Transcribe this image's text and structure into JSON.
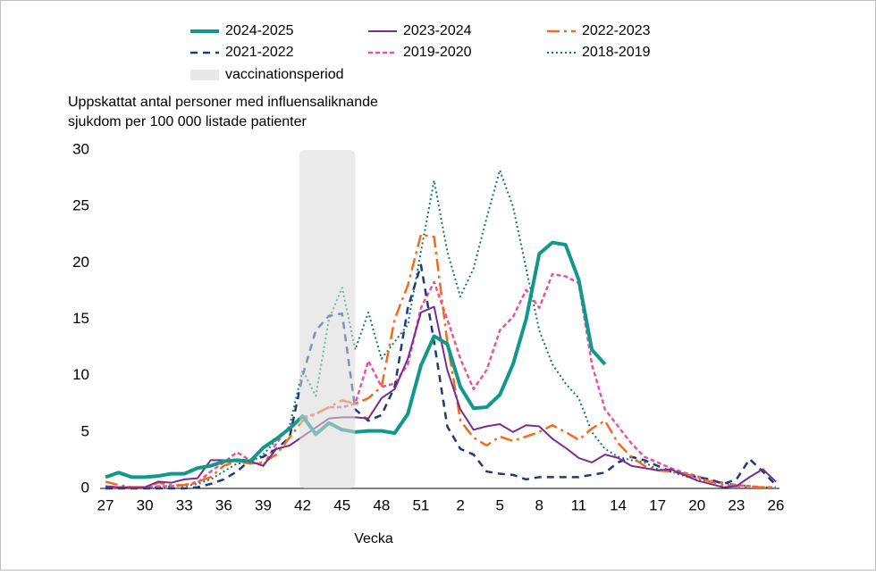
{
  "chart_data": {
    "type": "line",
    "ylabel": [
      "Uppskattat antal personer med influensaliknande",
      "sjukdom per 100 000 listade patienter"
    ],
    "xlabel": "Vecka",
    "categories": [
      27,
      null,
      null,
      30,
      null,
      null,
      33,
      null,
      null,
      36,
      null,
      null,
      39,
      null,
      null,
      42,
      null,
      null,
      45,
      null,
      null,
      48,
      null,
      null,
      51,
      null,
      null,
      2,
      null,
      null,
      5,
      null,
      null,
      8,
      null,
      null,
      11,
      null,
      null,
      14,
      null,
      null,
      17,
      null,
      null,
      20,
      null,
      null,
      23,
      null,
      null,
      26
    ],
    "ylim": [
      0,
      30
    ],
    "yticks": [
      0,
      5,
      10,
      15,
      20,
      25,
      30
    ],
    "shaded_span": {
      "name": "vaccinationsperiod",
      "from": 42,
      "to": 45,
      "color": "#d9d9d9"
    },
    "series": [
      {
        "name": "2024-2025",
        "color": "#10998a",
        "style": "solid",
        "width": 4,
        "values": [
          1.0,
          1.4,
          1.0,
          1.0,
          1.1,
          1.3,
          1.3,
          1.8,
          2.0,
          2.4,
          2.5,
          2.4,
          3.6,
          4.4,
          5.3,
          6.4,
          4.8,
          5.8,
          5.2,
          5.0,
          5.1,
          5.1,
          4.9,
          6.6,
          10.9,
          13.5,
          12.8,
          9.0,
          7.1,
          7.2,
          8.3,
          11.0,
          15.0,
          20.8,
          21.8,
          21.6,
          18.5,
          12.3,
          11.0,
          null,
          null,
          null,
          null,
          null,
          null,
          null,
          null,
          null,
          null,
          null,
          null,
          null
        ]
      },
      {
        "name": "2023-2024",
        "color": "#7b2d8e",
        "style": "solid",
        "width": 2,
        "values": [
          0.2,
          0.1,
          0.1,
          0.1,
          0.6,
          0.5,
          0.8,
          0.9,
          2.5,
          2.5,
          2.4,
          2.4,
          2.0,
          3.5,
          3.8,
          4.6,
          5.4,
          6.2,
          6.3,
          6.3,
          6.2,
          8.0,
          8.8,
          11.5,
          15.6,
          16.1,
          10.5,
          7.0,
          5.2,
          5.5,
          5.7,
          5.0,
          5.6,
          5.5,
          4.4,
          3.6,
          2.7,
          2.3,
          3.0,
          2.7,
          2.0,
          1.8,
          1.6,
          1.7,
          1.2,
          0.7,
          0.4,
          0.1,
          0.2,
          1.0,
          1.7,
          0.6
        ]
      },
      {
        "name": "2022-2023",
        "color": "#f26b1d",
        "style": "dashdot",
        "width": 2.5,
        "values": [
          0.6,
          0.3,
          0.1,
          0.1,
          0.5,
          0.3,
          0.3,
          0.6,
          1.0,
          2.0,
          2.4,
          2.2,
          2.3,
          3.0,
          4.5,
          6.0,
          6.6,
          7.2,
          7.8,
          7.5,
          8.0,
          9.0,
          15.0,
          18.0,
          22.5,
          22.3,
          13.0,
          6.0,
          4.5,
          3.8,
          4.6,
          4.2,
          4.6,
          5.0,
          5.6,
          5.0,
          4.3,
          5.3,
          6.0,
          4.0,
          2.8,
          2.0,
          1.6,
          1.5,
          1.3,
          1.0,
          0.6,
          0.3,
          0.2,
          0.1,
          0.1,
          0.1
        ]
      },
      {
        "name": "2021-2022",
        "color": "#1f3a7a",
        "style": "dashed",
        "width": 2.5,
        "values": [
          0,
          0,
          0,
          0,
          0,
          0,
          0,
          0.1,
          0.4,
          0.8,
          1.5,
          2.5,
          2.8,
          3.5,
          4.5,
          10.0,
          14.0,
          15.3,
          15.5,
          7.0,
          6.0,
          6.5,
          9.0,
          16.0,
          19.8,
          13.0,
          5.5,
          3.5,
          3.0,
          1.5,
          1.3,
          1.2,
          0.8,
          1.0,
          1.0,
          1.0,
          1.0,
          1.2,
          1.4,
          2.3,
          2.8,
          2.5,
          2.0,
          1.5,
          1.3,
          1.0,
          0.8,
          0.4,
          0.8,
          2.6,
          1.5,
          0.3
        ]
      },
      {
        "name": "2019-2020",
        "color": "#e8559e",
        "style": "shortdash",
        "width": 2.5,
        "values": [
          0.1,
          0.1,
          0.1,
          0.1,
          0.2,
          0.2,
          0.3,
          0.5,
          1.5,
          2.3,
          3.2,
          2.5,
          2.0,
          4.0,
          5.5,
          6.3,
          6.6,
          7.2,
          7.2,
          7.5,
          11.3,
          9.0,
          9.3,
          11.0,
          16.0,
          18.3,
          15.0,
          11.5,
          8.8,
          10.5,
          14.0,
          15.2,
          17.6,
          16.0,
          19.0,
          18.8,
          18.2,
          11.0,
          7.0,
          5.5,
          4.0,
          2.8,
          2.3,
          1.8,
          1.4,
          1.1,
          0.7,
          0.5,
          0.3,
          0.2,
          0.1,
          0.1
        ]
      },
      {
        "name": "2018-2019",
        "color": "#0e7a6a",
        "style": "dotted",
        "width": 2,
        "values": [
          0.1,
          0.1,
          0.1,
          0.1,
          0.1,
          0.2,
          0.2,
          0.4,
          0.8,
          1.5,
          2.2,
          2.3,
          3.0,
          4.3,
          5.5,
          10.5,
          8.2,
          15.0,
          17.8,
          12.3,
          15.6,
          11.5,
          13.0,
          14.5,
          21.0,
          27.3,
          21.0,
          17.0,
          19.5,
          24.0,
          28.2,
          25.0,
          19.5,
          14.0,
          11.0,
          9.3,
          8.0,
          5.0,
          3.5,
          2.8,
          2.5,
          2.3,
          1.7,
          1.5,
          1.1,
          0.8,
          0.6,
          0.5,
          0.3,
          0.2,
          0.1,
          0.1
        ]
      }
    ]
  }
}
